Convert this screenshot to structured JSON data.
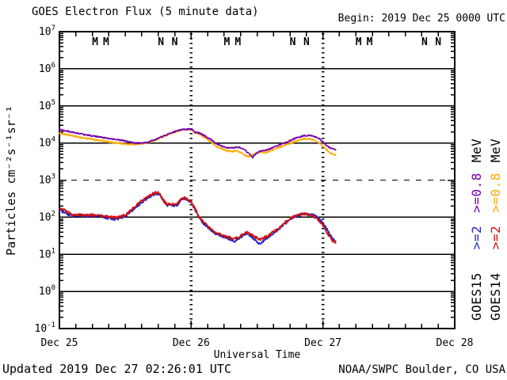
{
  "header": {
    "title": "GOES Electron Flux (5 minute data)",
    "begin_label": "Begin: 2019 Dec 25 0000 UTC"
  },
  "footer": {
    "updated": "Updated 2019 Dec 27 02:26:01 UTC",
    "source": "NOAA/SWPC Boulder, CO USA"
  },
  "legend": {
    "goes15": {
      "satellite": "GOES15",
      "e2": ">=2",
      "e08": ">=0.8",
      "mev": "MeV"
    },
    "goes14": {
      "satellite": "GOES14",
      "e2": ">=2",
      "e08": ">=0.8",
      "mev": "MeV"
    }
  },
  "chart_data": {
    "type": "line",
    "title": "GOES Electron Flux (5 minute data)",
    "xlabel": "Universal Time",
    "ylabel": "Particles cm⁻²s⁻¹sr⁻¹",
    "x_range_hours": [
      0,
      72
    ],
    "y_log_range": [
      -1,
      7
    ],
    "grid": "horizontal-decades",
    "legend_position": "right-rotated",
    "x_ticks": [
      "Dec 25",
      "Dec 26",
      "Dec 27",
      "Dec 28"
    ],
    "x_tick_hours": [
      0,
      24,
      48,
      72
    ],
    "minor_x_tick_interval_hours": 3,
    "y_tick_exponents": [
      7,
      6,
      5,
      4,
      3,
      2,
      1,
      0,
      -1
    ],
    "threshold_line": {
      "value": 1000,
      "style": "dashed"
    },
    "day_gridlines_hours": [
      24,
      48
    ],
    "time_markers": [
      {
        "label": "M",
        "color": "#CC1111",
        "hours": [
          6.5,
          30.5,
          54.5
        ]
      },
      {
        "label": "M",
        "color": "#2222CC",
        "hours": [
          8.5,
          32.5,
          56.5
        ]
      },
      {
        "label": "N",
        "color": "#CC1111",
        "hours": [
          18.5,
          42.5,
          66.5
        ]
      },
      {
        "label": "N",
        "color": "#2222CC",
        "hours": [
          21.0,
          45.0,
          69.0
        ]
      }
    ],
    "series": [
      {
        "id": "goes14-e08",
        "name": "GOES14 >=0.8 MeV",
        "color": "#FFAA00",
        "noise": 0.04,
        "points": [
          [
            0,
            18500
          ],
          [
            2,
            16000
          ],
          [
            4,
            14000
          ],
          [
            6,
            12500
          ],
          [
            8,
            11200
          ],
          [
            10,
            10200
          ],
          [
            11,
            9800
          ],
          [
            12,
            9400
          ],
          [
            13,
            9200
          ],
          [
            14,
            9300
          ],
          [
            15,
            9500
          ],
          [
            16,
            10200
          ],
          [
            17.5,
            12200
          ],
          [
            19,
            15000
          ],
          [
            20.5,
            18500
          ],
          [
            22,
            22000
          ],
          [
            23.5,
            23500
          ],
          [
            24.2,
            22500
          ],
          [
            24.6,
            19000
          ],
          [
            25.5,
            17500
          ],
          [
            26.5,
            14000
          ],
          [
            27.5,
            10800
          ],
          [
            28.5,
            8300
          ],
          [
            29.5,
            7000
          ],
          [
            30.5,
            6300
          ],
          [
            31.5,
            5800
          ],
          [
            32.3,
            6300
          ],
          [
            33,
            5500
          ],
          [
            33.8,
            4600
          ],
          [
            34.5,
            4300
          ],
          [
            35.2,
            4800
          ],
          [
            36,
            5300
          ],
          [
            36.8,
            5800
          ],
          [
            37.5,
            5500
          ],
          [
            38.5,
            6300
          ],
          [
            40,
            7600
          ],
          [
            41.5,
            9300
          ],
          [
            43,
            11200
          ],
          [
            44.5,
            12800
          ],
          [
            45.5,
            13000
          ],
          [
            46.5,
            12000
          ],
          [
            47.5,
            9800
          ],
          [
            48.2,
            7800
          ],
          [
            48.8,
            6300
          ],
          [
            49.4,
            5300
          ],
          [
            50.4,
            4700
          ]
        ]
      },
      {
        "id": "goes15-e08",
        "name": "GOES15 >=0.8 MeV",
        "color": "#7700AA",
        "noise": 0.035,
        "points": [
          [
            0,
            23000
          ],
          [
            2,
            20000
          ],
          [
            4,
            17500
          ],
          [
            6,
            15500
          ],
          [
            8,
            14000
          ],
          [
            10,
            12500
          ],
          [
            11.5,
            11800
          ],
          [
            13,
            10500
          ],
          [
            14,
            10000
          ],
          [
            15,
            9800
          ],
          [
            16,
            10500
          ],
          [
            17.5,
            12500
          ],
          [
            19,
            15500
          ],
          [
            20.5,
            19000
          ],
          [
            21.5,
            21500
          ],
          [
            22.5,
            23000
          ],
          [
            23.5,
            23500
          ],
          [
            24.2,
            23000
          ],
          [
            24.6,
            19500
          ],
          [
            25.5,
            18500
          ],
          [
            26.5,
            15500
          ],
          [
            27.5,
            12500
          ],
          [
            28.5,
            9800
          ],
          [
            29.5,
            8300
          ],
          [
            30.5,
            7600
          ],
          [
            31.5,
            7300
          ],
          [
            32.5,
            7800
          ],
          [
            33.5,
            7000
          ],
          [
            34.5,
            5200
          ],
          [
            35.2,
            4100
          ],
          [
            35.8,
            5200
          ],
          [
            36.5,
            6000
          ],
          [
            37.5,
            6300
          ],
          [
            38.5,
            7200
          ],
          [
            40,
            8800
          ],
          [
            41.5,
            10800
          ],
          [
            43,
            13500
          ],
          [
            44.5,
            15500
          ],
          [
            45.5,
            16000
          ],
          [
            46.5,
            15000
          ],
          [
            47.5,
            12500
          ],
          [
            48.2,
            10000
          ],
          [
            48.8,
            8300
          ],
          [
            49.4,
            7200
          ],
          [
            50.4,
            6600
          ]
        ]
      },
      {
        "id": "goes15-e2",
        "name": "GOES15 >=2 MeV",
        "color": "#2222CC",
        "noise": 0.07,
        "points": [
          [
            0,
            155
          ],
          [
            1.5,
            120
          ],
          [
            2.5,
            105
          ],
          [
            3.5,
            112
          ],
          [
            4.5,
            108
          ],
          [
            6,
            110
          ],
          [
            7.5,
            105
          ],
          [
            8.5,
            98
          ],
          [
            9.5,
            92
          ],
          [
            10.3,
            88
          ],
          [
            11,
            95
          ],
          [
            12,
            105
          ],
          [
            13,
            140
          ],
          [
            14,
            190
          ],
          [
            15,
            250
          ],
          [
            16,
            320
          ],
          [
            17,
            400
          ],
          [
            17.8,
            430
          ],
          [
            18.3,
            420
          ],
          [
            18.7,
            300
          ],
          [
            19.5,
            215
          ],
          [
            20.5,
            205
          ],
          [
            21.5,
            215
          ],
          [
            22,
            280
          ],
          [
            22.6,
            320
          ],
          [
            23.2,
            300
          ],
          [
            24,
            255
          ],
          [
            24.8,
            150
          ],
          [
            25.5,
            95
          ],
          [
            26.5,
            62
          ],
          [
            27.5,
            47
          ],
          [
            28.5,
            36
          ],
          [
            29.5,
            31
          ],
          [
            30.5,
            28
          ],
          [
            31.5,
            24
          ],
          [
            32,
            22
          ],
          [
            32.7,
            27
          ],
          [
            33.5,
            32
          ],
          [
            34.2,
            37
          ],
          [
            35,
            30
          ],
          [
            35.8,
            23
          ],
          [
            36.5,
            19
          ],
          [
            37.3,
            24
          ],
          [
            38.2,
            30
          ],
          [
            39.5,
            42
          ],
          [
            40.8,
            62
          ],
          [
            42,
            88
          ],
          [
            43,
            105
          ],
          [
            44,
            118
          ],
          [
            45,
            122
          ],
          [
            45.8,
            118
          ],
          [
            46.6,
            108
          ],
          [
            47.3,
            92
          ],
          [
            48,
            72
          ],
          [
            48.7,
            48
          ],
          [
            49.3,
            33
          ],
          [
            49.8,
            26
          ],
          [
            50.4,
            22
          ]
        ]
      },
      {
        "id": "goes14-e2",
        "name": "GOES14 >=2 MeV",
        "color": "#CC1111",
        "noise": 0.07,
        "points": [
          [
            0,
            185
          ],
          [
            1.5,
            135
          ],
          [
            2.5,
            112
          ],
          [
            3.5,
            118
          ],
          [
            4.5,
            112
          ],
          [
            6,
            115
          ],
          [
            7.5,
            110
          ],
          [
            8.5,
            105
          ],
          [
            9.5,
            100
          ],
          [
            10.3,
            97
          ],
          [
            11,
            103
          ],
          [
            12,
            115
          ],
          [
            13,
            155
          ],
          [
            14,
            210
          ],
          [
            15,
            275
          ],
          [
            16,
            350
          ],
          [
            17,
            430
          ],
          [
            17.7,
            470
          ],
          [
            18.2,
            450
          ],
          [
            18.7,
            320
          ],
          [
            19.5,
            230
          ],
          [
            20.5,
            220
          ],
          [
            21.5,
            230
          ],
          [
            22,
            300
          ],
          [
            22.6,
            340
          ],
          [
            23.2,
            310
          ],
          [
            24,
            265
          ],
          [
            24.8,
            160
          ],
          [
            25.5,
            100
          ],
          [
            26.5,
            66
          ],
          [
            27.5,
            50
          ],
          [
            28.5,
            38
          ],
          [
            29.5,
            33
          ],
          [
            30.5,
            30
          ],
          [
            31.5,
            27
          ],
          [
            32,
            26
          ],
          [
            32.7,
            30
          ],
          [
            33.5,
            35
          ],
          [
            34.2,
            40
          ],
          [
            35,
            33
          ],
          [
            35.8,
            28
          ],
          [
            36.5,
            25
          ],
          [
            37.3,
            28
          ],
          [
            38.2,
            33
          ],
          [
            39.5,
            46
          ],
          [
            40.8,
            66
          ],
          [
            42,
            92
          ],
          [
            43,
            110
          ],
          [
            44,
            120
          ],
          [
            45,
            120
          ],
          [
            45.8,
            113
          ],
          [
            46.6,
            100
          ],
          [
            47.3,
            82
          ],
          [
            48,
            60
          ],
          [
            48.7,
            40
          ],
          [
            49.3,
            28
          ],
          [
            49.8,
            23
          ],
          [
            50.4,
            21
          ]
        ]
      }
    ]
  }
}
